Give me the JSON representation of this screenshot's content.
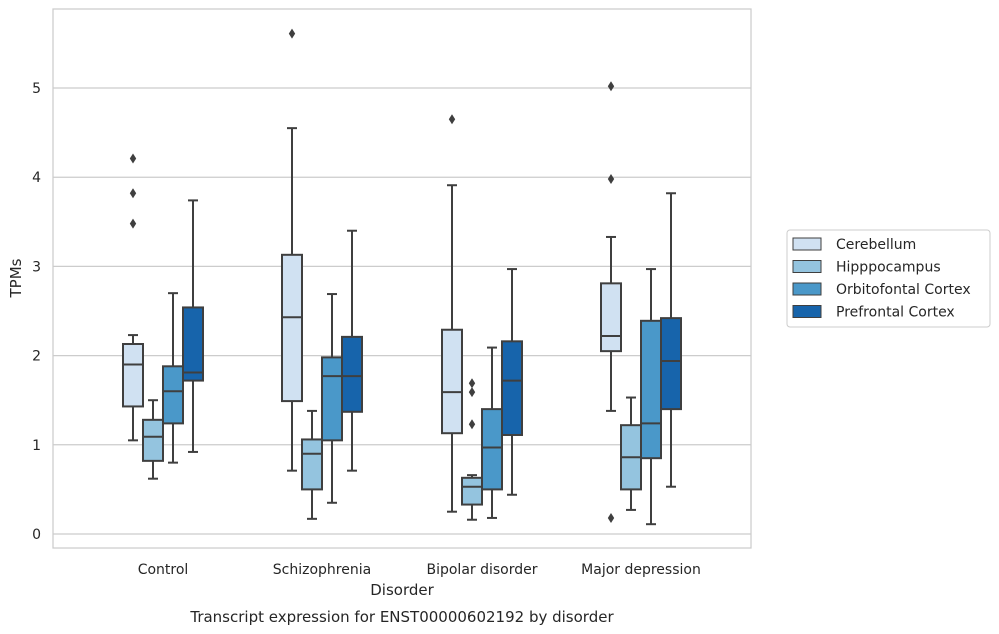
{
  "chart_data": {
    "type": "box",
    "title": "Transcript expression for ENST00000602192 by disorder",
    "xlabel": "Disorder",
    "ylabel": "TPMs",
    "ylim": [
      -0.15,
      5.85
    ],
    "yticks": [
      0,
      1,
      2,
      3,
      4,
      5
    ],
    "grid": "horizontal",
    "legend_position": "right",
    "categories": [
      "Control",
      "Schizophrenia",
      "Bipolar disorder",
      "Major depression"
    ],
    "series": [
      {
        "name": "Cerebellum",
        "color": "#d0e1f2",
        "boxes": [
          {
            "whisker_low": 1.05,
            "q1": 1.43,
            "median": 1.9,
            "q3": 2.13,
            "whisker_high": 2.23,
            "outliers": [
              3.48,
              3.82,
              4.21
            ]
          },
          {
            "whisker_low": 0.71,
            "q1": 1.49,
            "median": 2.43,
            "q3": 3.13,
            "whisker_high": 4.55,
            "outliers": [
              5.61
            ]
          },
          {
            "whisker_low": 0.25,
            "q1": 1.13,
            "median": 1.59,
            "q3": 2.29,
            "whisker_high": 3.91,
            "outliers": [
              4.65
            ]
          },
          {
            "whisker_low": 1.38,
            "q1": 2.05,
            "median": 2.22,
            "q3": 2.81,
            "whisker_high": 3.33,
            "outliers": [
              0.18,
              3.98,
              5.02
            ]
          }
        ]
      },
      {
        "name": "Hipppocampus",
        "color": "#94c4df",
        "boxes": [
          {
            "whisker_low": 0.62,
            "q1": 0.82,
            "median": 1.09,
            "q3": 1.28,
            "whisker_high": 1.5,
            "outliers": []
          },
          {
            "whisker_low": 0.17,
            "q1": 0.5,
            "median": 0.9,
            "q3": 1.06,
            "whisker_high": 1.38,
            "outliers": []
          },
          {
            "whisker_low": 0.16,
            "q1": 0.33,
            "median": 0.53,
            "q3": 0.63,
            "whisker_high": 0.66,
            "outliers": [
              1.23,
              1.59,
              1.69
            ]
          },
          {
            "whisker_low": 0.27,
            "q1": 0.5,
            "median": 0.86,
            "q3": 1.22,
            "whisker_high": 1.53,
            "outliers": []
          }
        ]
      },
      {
        "name": "Orbitofontal Cortex",
        "color": "#4a98c9",
        "boxes": [
          {
            "whisker_low": 0.8,
            "q1": 1.24,
            "median": 1.6,
            "q3": 1.88,
            "whisker_high": 2.7,
            "outliers": []
          },
          {
            "whisker_low": 0.35,
            "q1": 1.05,
            "median": 1.77,
            "q3": 1.98,
            "whisker_high": 2.69,
            "outliers": []
          },
          {
            "whisker_low": 0.18,
            "q1": 0.5,
            "median": 0.97,
            "q3": 1.4,
            "whisker_high": 2.09,
            "outliers": []
          },
          {
            "whisker_low": 0.11,
            "q1": 0.85,
            "median": 1.24,
            "q3": 2.39,
            "whisker_high": 2.97,
            "outliers": []
          }
        ]
      },
      {
        "name": "Prefrontal Cortex",
        "color": "#1764ab",
        "boxes": [
          {
            "whisker_low": 0.92,
            "q1": 1.72,
            "median": 1.81,
            "q3": 2.54,
            "whisker_high": 3.74,
            "outliers": []
          },
          {
            "whisker_low": 0.71,
            "q1": 1.37,
            "median": 1.77,
            "q3": 2.21,
            "whisker_high": 3.4,
            "outliers": []
          },
          {
            "whisker_low": 0.44,
            "q1": 1.11,
            "median": 1.72,
            "q3": 2.16,
            "whisker_high": 2.97,
            "outliers": []
          },
          {
            "whisker_low": 0.53,
            "q1": 1.4,
            "median": 1.94,
            "q3": 2.42,
            "whisker_high": 3.82,
            "outliers": []
          }
        ]
      }
    ]
  }
}
